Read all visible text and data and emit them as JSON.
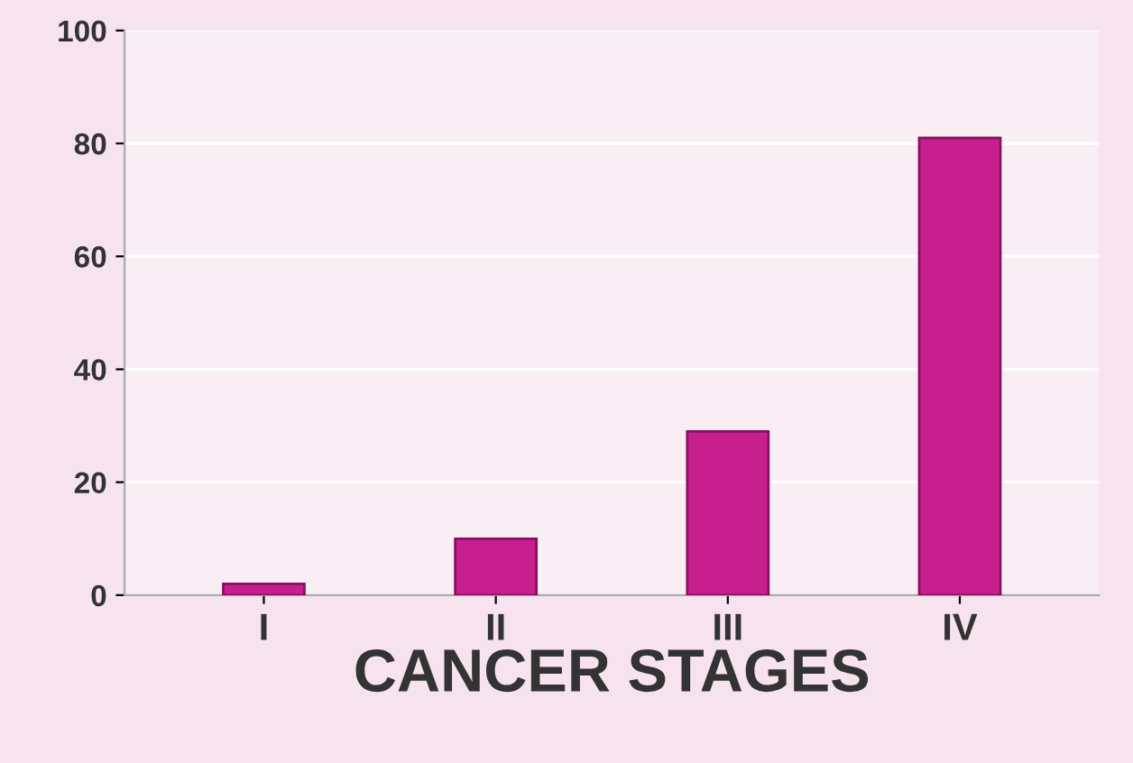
{
  "chart_data": {
    "type": "bar",
    "xlabel": "CANCER STAGES",
    "categories": [
      "I",
      "II",
      "III",
      "IV"
    ],
    "values": [
      2,
      10,
      29,
      81
    ],
    "color": "#c81f8f",
    "ylim": [
      0,
      100
    ],
    "yticks": [
      0,
      20,
      40,
      60,
      80,
      100
    ],
    "grid": "y"
  }
}
